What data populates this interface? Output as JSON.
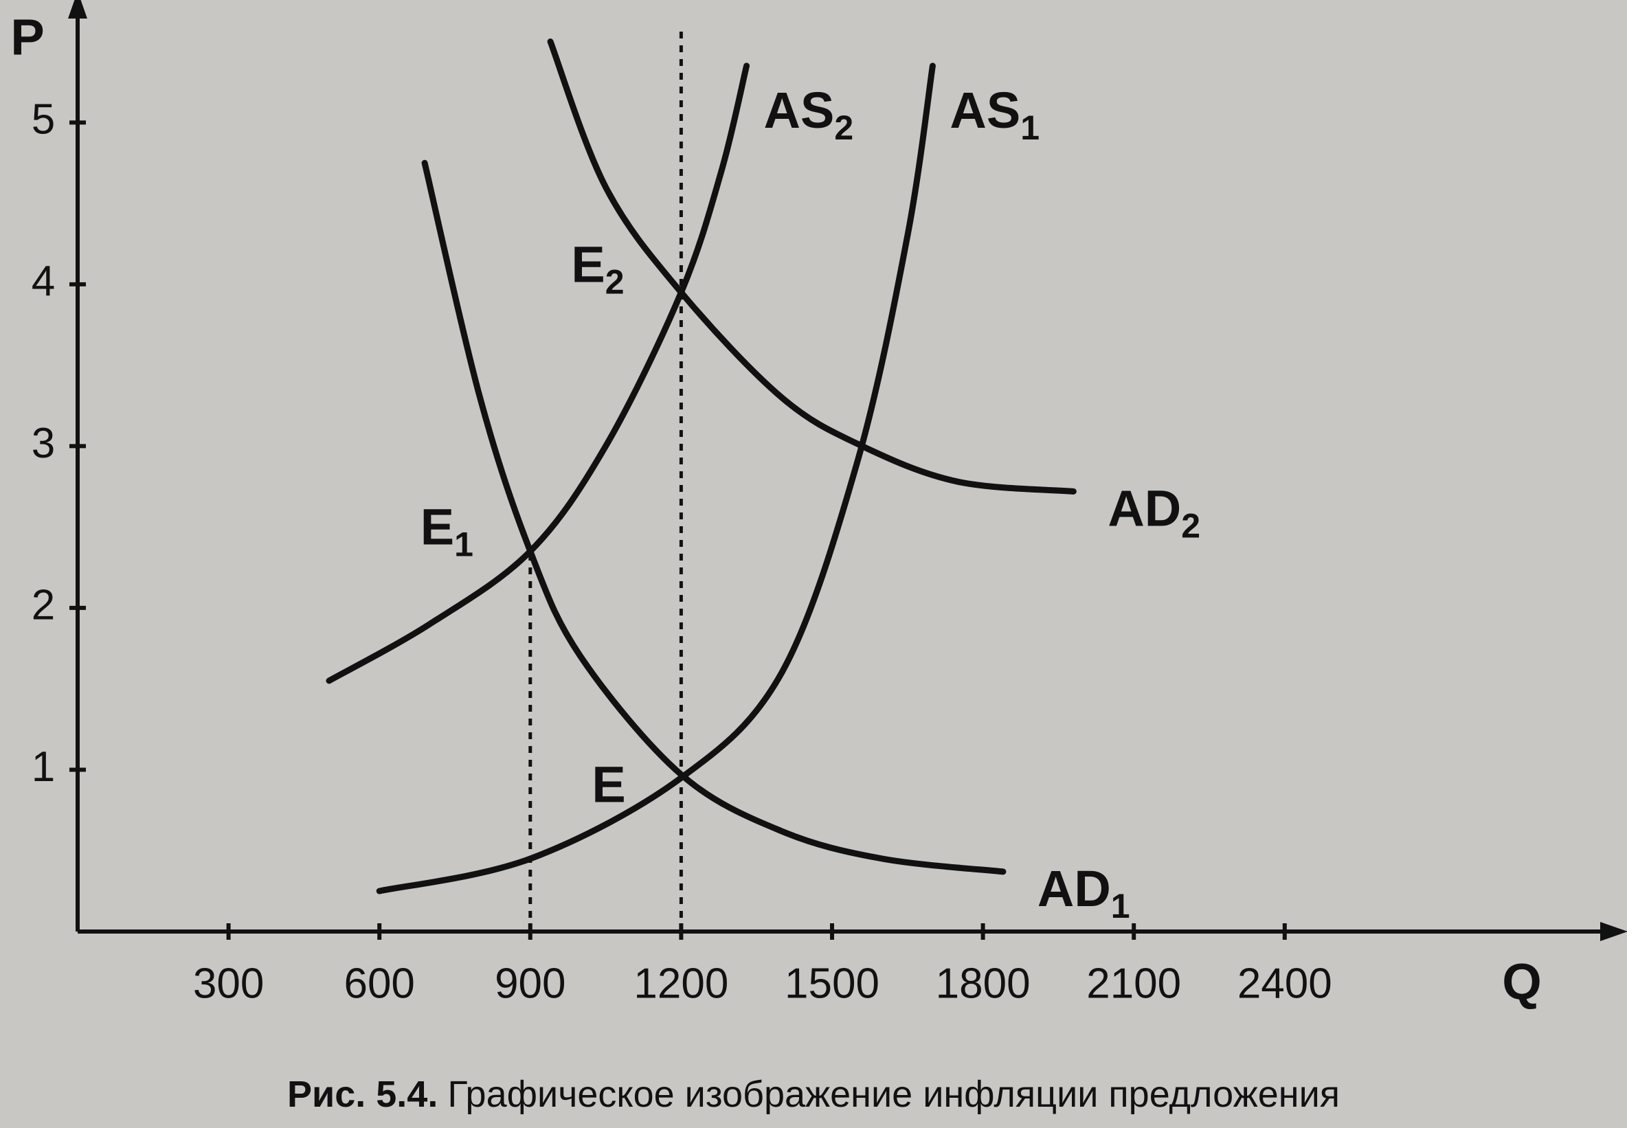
{
  "chart_data": {
    "type": "line",
    "x_label": "Q",
    "y_label": "P",
    "caption": {
      "number": "Рис. 5.4.",
      "text": "Графическое изображение инфляции предложения"
    },
    "xlim": [
      0,
      3000
    ],
    "ylim": [
      0,
      5.6
    ],
    "xticks": [
      300,
      600,
      900,
      1200,
      1500,
      1800,
      2100,
      2400
    ],
    "yticks": [
      1,
      2,
      3,
      4,
      5
    ],
    "color": "#111111",
    "series": [
      {
        "name": [
          "AS",
          "1"
        ],
        "x": [
          600,
          900,
          1200,
          1400,
          1550,
          1650,
          1700
        ],
        "values": [
          0.25,
          0.45,
          0.95,
          1.6,
          2.9,
          4.3,
          5.35
        ]
      },
      {
        "name": [
          "AS",
          "2"
        ],
        "x": [
          500,
          700,
          900,
          1050,
          1200,
          1280,
          1330
        ],
        "values": [
          1.55,
          1.9,
          2.35,
          3.0,
          3.95,
          4.7,
          5.35
        ]
      },
      {
        "name": [
          "AD",
          "1"
        ],
        "x": [
          690,
          800,
          900,
          1000,
          1200,
          1400,
          1600,
          1840
        ],
        "values": [
          4.75,
          3.3,
          2.35,
          1.7,
          0.97,
          0.62,
          0.45,
          0.37
        ]
      },
      {
        "name": [
          "AD",
          "2"
        ],
        "x": [
          940,
          1050,
          1200,
          1400,
          1560,
          1750,
          1980
        ],
        "values": [
          5.5,
          4.6,
          3.95,
          3.3,
          3.0,
          2.78,
          2.72
        ]
      }
    ],
    "points": [
      {
        "label": [
          "E",
          ""
        ],
        "x": 1200,
        "y": 0.97
      },
      {
        "label": [
          "E",
          "1"
        ],
        "x": 900,
        "y": 2.35
      },
      {
        "label": [
          "E",
          "2"
        ],
        "x": 1200,
        "y": 3.95
      }
    ],
    "dashed_lines": [
      {
        "x": 900,
        "y": 2.35
      },
      {
        "x": 1200,
        "y": 5.6
      }
    ]
  }
}
